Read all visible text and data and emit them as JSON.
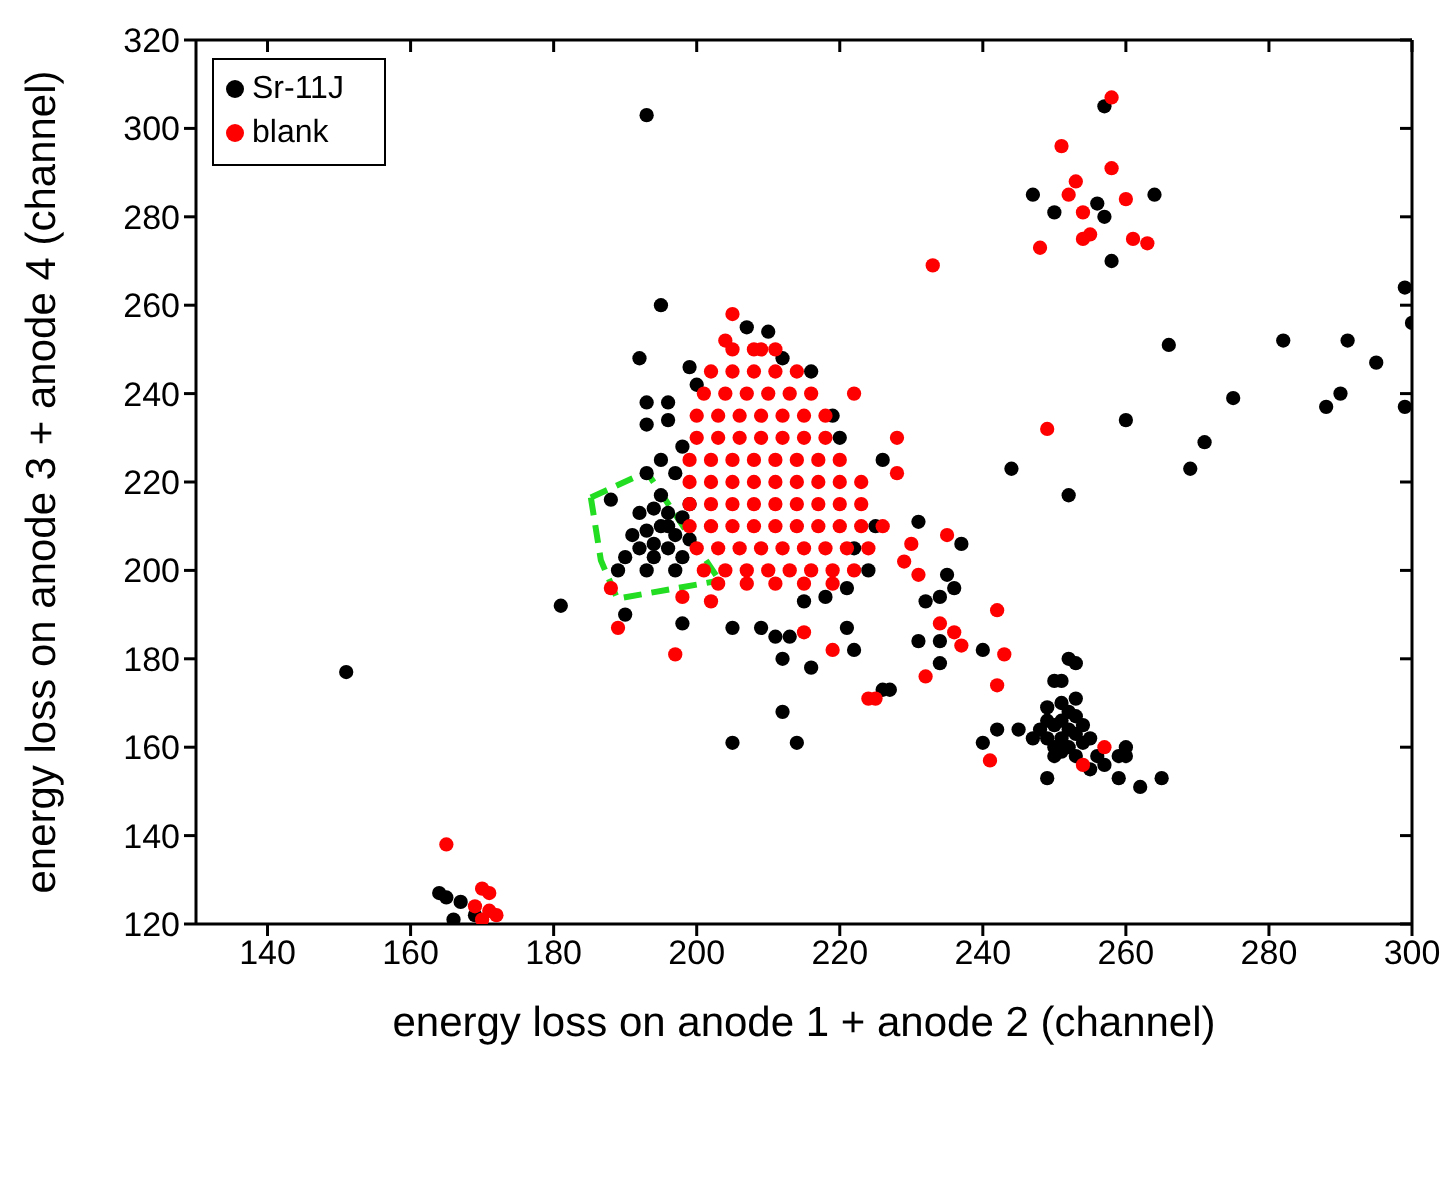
{
  "chart_data": {
    "type": "scatter",
    "xlabel": "energy loss on anode 1 + anode 2 (channel)",
    "ylabel": "energy loss on anode 3 + anode 4 (channel)",
    "xlim": [
      130,
      300
    ],
    "xticks": [
      140,
      160,
      180,
      200,
      220,
      240,
      260,
      280,
      300
    ],
    "ylim": [
      120,
      320
    ],
    "yticks": [
      120,
      140,
      160,
      180,
      200,
      220,
      240,
      260,
      280,
      300,
      320
    ],
    "legend": "top left",
    "marker": "circle",
    "series": [
      {
        "name": "Sr-11J",
        "color": "#000000",
        "x": [
          257,
          247,
          250,
          256,
          257,
          264,
          258,
          299,
          300,
          266,
          282,
          291,
          295,
          275,
          288,
          290,
          299,
          260,
          271,
          244,
          269,
          252,
          226,
          231,
          237,
          252,
          253,
          250,
          251,
          251,
          253,
          249,
          242,
          245,
          240,
          249,
          259,
          262,
          265,
          260,
          260,
          259,
          255,
          257,
          250,
          251,
          252,
          253,
          251,
          249,
          250,
          252,
          254,
          248,
          252,
          254,
          250,
          253,
          256,
          255,
          249,
          251,
          247,
          253,
          234,
          227,
          231,
          234,
          240,
          222,
          216,
          232,
          234,
          236,
          235,
          195,
          192,
          207,
          210,
          199,
          193,
          196,
          196,
          193,
          181,
          190,
          198,
          205,
          209,
          211,
          213,
          212,
          212,
          221,
          226,
          205,
          214,
          164,
          165,
          167,
          166,
          169,
          151,
          193,
          192,
          194,
          196,
          198,
          193,
          195,
          197,
          199,
          192,
          194,
          196,
          198,
          195,
          193,
          197,
          191,
          194,
          196,
          190,
          199,
          197,
          198,
          195,
          193,
          222,
          224,
          221,
          218,
          215,
          225,
          220,
          219,
          216,
          212,
          200,
          188,
          189
        ],
        "values": [
          305,
          285,
          281,
          283,
          280,
          285,
          270,
          264,
          256,
          251,
          252,
          252,
          247,
          239,
          237,
          240,
          237,
          234,
          229,
          223,
          223,
          217,
          225,
          211,
          206,
          180,
          179,
          175,
          175,
          170,
          171,
          169,
          164,
          164,
          161,
          153,
          153,
          151,
          153,
          160,
          158,
          158,
          155,
          156,
          165,
          166,
          164,
          163,
          162,
          162,
          160,
          160,
          161,
          164,
          168,
          165,
          158,
          158,
          158,
          162,
          166,
          159,
          162,
          167,
          179,
          173,
          184,
          184,
          182,
          182,
          178,
          193,
          194,
          196,
          199,
          260,
          248,
          255,
          254,
          246,
          238,
          238,
          234,
          233,
          192,
          190,
          188,
          187,
          187,
          185,
          185,
          180,
          168,
          187,
          173,
          161,
          161,
          127,
          126,
          125,
          121,
          122,
          177,
          303,
          205,
          203,
          205,
          203,
          209,
          210,
          208,
          207,
          213,
          214,
          213,
          212,
          217,
          200,
          200,
          208,
          206,
          210,
          203,
          215,
          222,
          228,
          225,
          222,
          205,
          200,
          196,
          194,
          193,
          210,
          230,
          235,
          245,
          248,
          242,
          216,
          200
        ]
      },
      {
        "name": "blank",
        "color": "#ff0000",
        "x": [
          258,
          251,
          258,
          253,
          252,
          254,
          260,
          254,
          255,
          261,
          263,
          248,
          233,
          249,
          228,
          228,
          235,
          257,
          254,
          241,
          242,
          243,
          242,
          232,
          225,
          236,
          237,
          219,
          234,
          231,
          229,
          230,
          205,
          204,
          209,
          222,
          189,
          197,
          215,
          224,
          188,
          198,
          202,
          165,
          169,
          170,
          171,
          171,
          172,
          170,
          205,
          208,
          211,
          202,
          205,
          208,
          211,
          214,
          201,
          204,
          207,
          210,
          213,
          216,
          200,
          203,
          206,
          209,
          212,
          215,
          218,
          200,
          203,
          206,
          209,
          212,
          215,
          218,
          199,
          202,
          205,
          208,
          211,
          214,
          217,
          220,
          199,
          202,
          205,
          208,
          211,
          214,
          217,
          220,
          223,
          199,
          202,
          205,
          208,
          211,
          214,
          217,
          220,
          223,
          199,
          202,
          205,
          208,
          211,
          214,
          217,
          220,
          223,
          226,
          200,
          203,
          206,
          209,
          212,
          215,
          218,
          221,
          224,
          201,
          204,
          207,
          210,
          213,
          216,
          219,
          222,
          203,
          207,
          211,
          215,
          219
        ],
        "values": [
          307,
          296,
          291,
          288,
          285,
          281,
          284,
          275,
          276,
          275,
          274,
          273,
          269,
          232,
          230,
          222,
          208,
          160,
          156,
          157,
          191,
          181,
          174,
          176,
          171,
          186,
          183,
          182,
          188,
          199,
          202,
          206,
          258,
          252,
          250,
          240,
          187,
          181,
          186,
          171,
          196,
          194,
          193,
          138,
          124,
          128,
          127,
          123,
          122,
          121,
          250,
          250,
          250,
          245,
          245,
          245,
          245,
          245,
          240,
          240,
          240,
          240,
          240,
          240,
          235,
          235,
          235,
          235,
          235,
          235,
          235,
          230,
          230,
          230,
          230,
          230,
          230,
          230,
          225,
          225,
          225,
          225,
          225,
          225,
          225,
          225,
          220,
          220,
          220,
          220,
          220,
          220,
          220,
          220,
          220,
          215,
          215,
          215,
          215,
          215,
          215,
          215,
          215,
          215,
          210,
          210,
          210,
          210,
          210,
          210,
          210,
          210,
          210,
          210,
          205,
          205,
          205,
          205,
          205,
          205,
          205,
          205,
          205,
          200,
          200,
          200,
          200,
          200,
          200,
          200,
          200,
          197,
          197,
          197,
          197,
          197
        ]
      },
      {
        "type": "line",
        "color": "#22dd22",
        "line_style": "dashed",
        "marker": "none",
        "x": [
          185.2,
          193.0,
          203.2
        ],
        "values": [
          216.5,
          222.3,
          197.7
        ]
      },
      {
        "type": "line",
        "color": "#22dd22",
        "line_style": "dashed",
        "marker": "none",
        "x": [
          185.2,
          186.6,
          188.9,
          203.2
        ],
        "values": [
          216.5,
          202.3,
          193.6,
          197.7
        ]
      }
    ]
  }
}
